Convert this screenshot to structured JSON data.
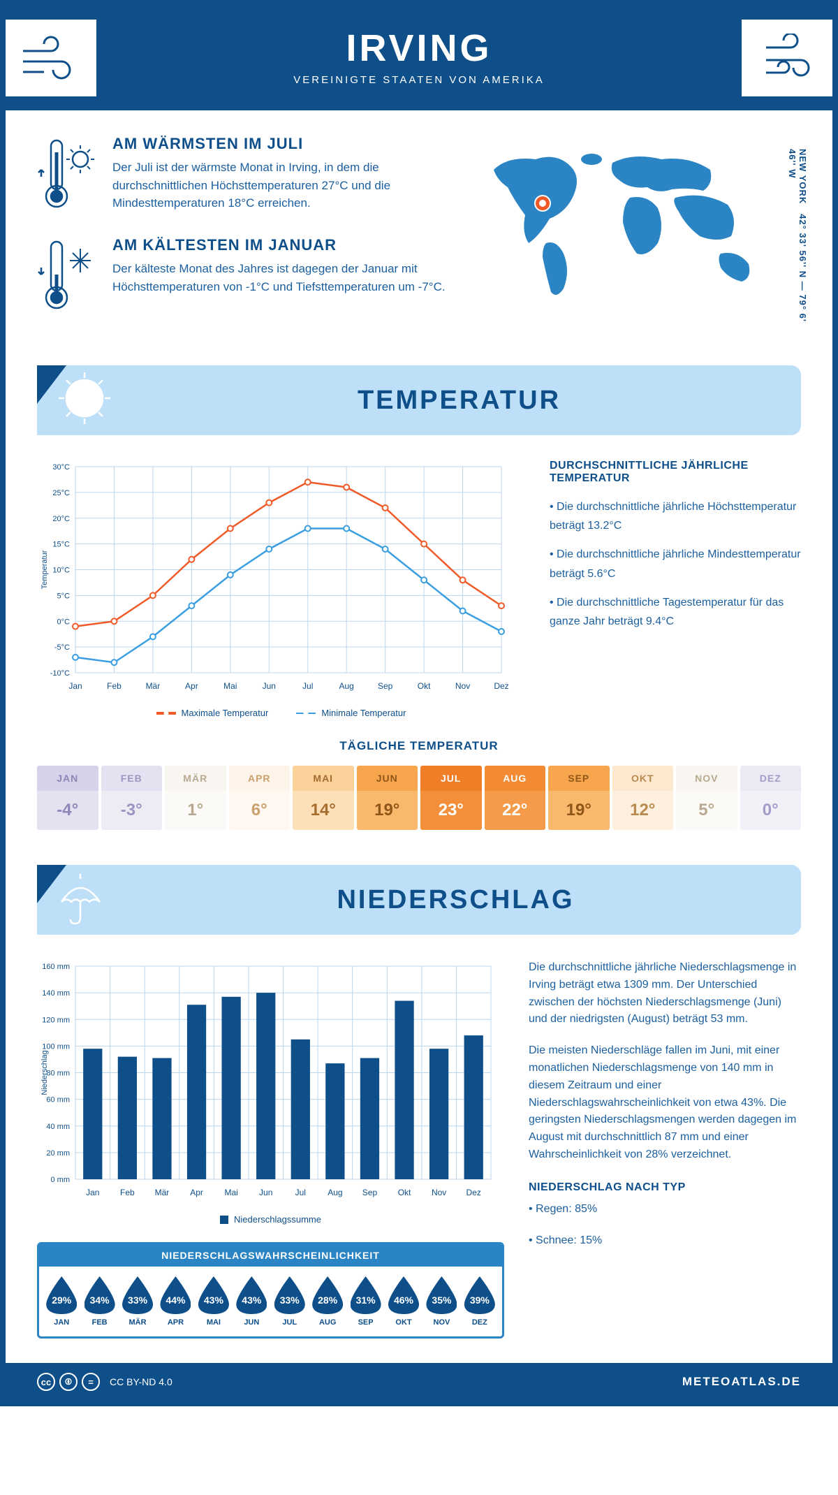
{
  "header": {
    "title": "IRVING",
    "subtitle": "VEREINIGTE STAATEN VON AMERIKA"
  },
  "coords": {
    "text": "42° 33' 56'' N — 79° 6' 46'' W",
    "label": "NEW YORK"
  },
  "warmest": {
    "title": "AM WÄRMSTEN IM JULI",
    "text": "Der Juli ist der wärmste Monat in Irving, in dem die durchschnittlichen Höchsttemperaturen 27°C und die Mindesttemperaturen 18°C erreichen."
  },
  "coldest": {
    "title": "AM KÄLTESTEN IM JANUAR",
    "text": "Der kälteste Monat des Jahres ist dagegen der Januar mit Höchsttemperaturen von -1°C und Tiefsttemperaturen um -7°C."
  },
  "temp_section": {
    "title": "TEMPERATUR",
    "info_title": "DURCHSCHNITTLICHE JÄHRLICHE TEMPERATUR",
    "bullets": [
      "• Die durchschnittliche jährliche Höchsttemperatur beträgt 13.2°C",
      "• Die durchschnittliche jährliche Mindesttemperatur beträgt 5.6°C",
      "• Die durchschnittliche Tagestemperatur für das ganze Jahr beträgt 9.4°C"
    ],
    "chart": {
      "months": [
        "Jan",
        "Feb",
        "Mär",
        "Apr",
        "Mai",
        "Jun",
        "Jul",
        "Aug",
        "Sep",
        "Okt",
        "Nov",
        "Dez"
      ],
      "max_series": [
        -1,
        0,
        5,
        12,
        18,
        23,
        27,
        26,
        22,
        15,
        8,
        3
      ],
      "min_series": [
        -7,
        -8,
        -3,
        3,
        9,
        14,
        18,
        18,
        14,
        8,
        2,
        -2
      ],
      "ylim": [
        -10,
        30
      ],
      "ytick_step": 5,
      "max_color": "#f05a28",
      "min_color": "#3a9ee0",
      "grid_color": "#bcd6ee",
      "bg": "#ffffff",
      "ylabel": "Temperatur",
      "legend_max": "Maximale Temperatur",
      "legend_min": "Minimale Temperatur"
    },
    "daily_title": "TÄGLICHE TEMPERATUR",
    "daily": {
      "months": [
        "JAN",
        "FEB",
        "MÄR",
        "APR",
        "MAI",
        "JUN",
        "JUL",
        "AUG",
        "SEP",
        "OKT",
        "NOV",
        "DEZ"
      ],
      "values": [
        "-4°",
        "-3°",
        "1°",
        "6°",
        "14°",
        "19°",
        "23°",
        "22°",
        "19°",
        "12°",
        "5°",
        "0°"
      ],
      "head_colors": [
        "#d5d3e9",
        "#e3e2f0",
        "#f9f6f2",
        "#fdf3e9",
        "#fbd19a",
        "#f8a64d",
        "#f07e26",
        "#f28b33",
        "#f8a64d",
        "#fce7cf",
        "#f9f6f2",
        "#ece9f4"
      ],
      "val_colors": [
        "#e3e2f0",
        "#edecf5",
        "#fcfaf7",
        "#fef8f1",
        "#fde0b8",
        "#fab86c",
        "#f38f3a",
        "#f49a48",
        "#fab86c",
        "#fdf0de",
        "#fcfaf7",
        "#f3f1f8"
      ],
      "text_colors": [
        "#8d87b8",
        "#9b96c1",
        "#b9a990",
        "#c9a16e",
        "#a56d2e",
        "#8e5619",
        "#ffffff",
        "#ffffff",
        "#8e5619",
        "#b98a50",
        "#b9a990",
        "#a39bc8"
      ]
    }
  },
  "precip_section": {
    "title": "NIEDERSCHLAG",
    "chart": {
      "months": [
        "Jan",
        "Feb",
        "Mär",
        "Apr",
        "Mai",
        "Jun",
        "Jul",
        "Aug",
        "Sep",
        "Okt",
        "Nov",
        "Dez"
      ],
      "values": [
        98,
        92,
        91,
        131,
        137,
        140,
        105,
        87,
        91,
        134,
        98,
        108
      ],
      "ylim": [
        0,
        160
      ],
      "ytick_step": 20,
      "bar_color": "#0e4f8a",
      "grid_color": "#bcd6ee",
      "ylabel": "Niederschlag",
      "legend": "Niederschlagssumme"
    },
    "text1": "Die durchschnittliche jährliche Niederschlagsmenge in Irving beträgt etwa 1309 mm. Der Unterschied zwischen der höchsten Niederschlagsmenge (Juni) und der niedrigsten (August) beträgt 53 mm.",
    "text2": "Die meisten Niederschläge fallen im Juni, mit einer monatlichen Niederschlagsmenge von 140 mm in diesem Zeitraum und einer Niederschlagswahrscheinlichkeit von etwa 43%. Die geringsten Niederschlagsmengen werden dagegen im August mit durchschnittlich 87 mm und einer Wahrscheinlichkeit von 28% verzeichnet.",
    "type_title": "NIEDERSCHLAG NACH TYP",
    "type_bullets": [
      "• Regen: 85%",
      "• Schnee: 15%"
    ],
    "prob_title": "NIEDERSCHLAGSWAHRSCHEINLICHKEIT",
    "prob": {
      "months": [
        "JAN",
        "FEB",
        "MÄR",
        "APR",
        "MAI",
        "JUN",
        "JUL",
        "AUG",
        "SEP",
        "OKT",
        "NOV",
        "DEZ"
      ],
      "values": [
        "29%",
        "34%",
        "33%",
        "44%",
        "43%",
        "43%",
        "33%",
        "28%",
        "31%",
        "46%",
        "35%",
        "39%"
      ]
    }
  },
  "footer": {
    "license": "CC BY-ND 4.0",
    "brand": "METEOATLAS.DE"
  }
}
